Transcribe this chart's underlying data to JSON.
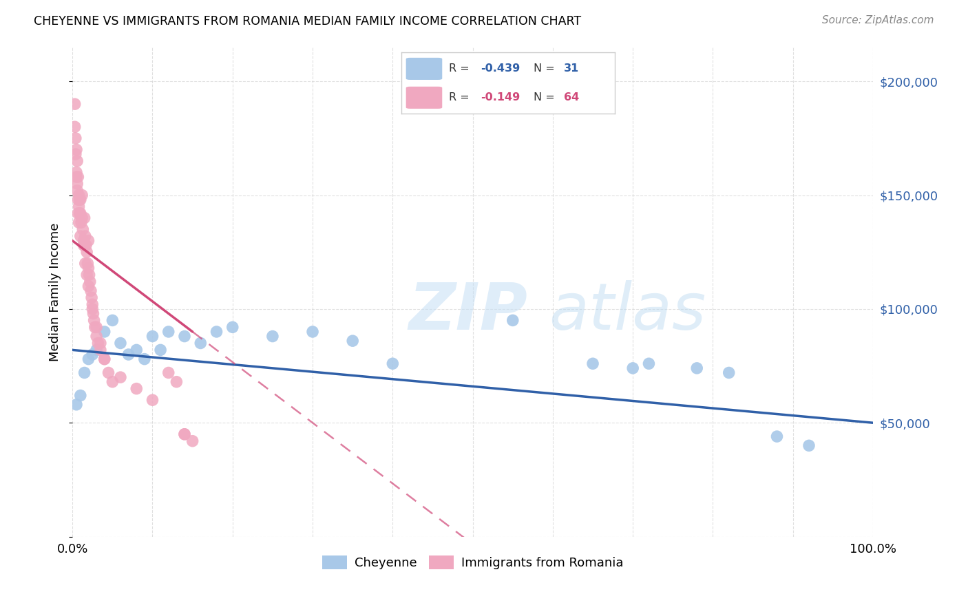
{
  "title": "CHEYENNE VS IMMIGRANTS FROM ROMANIA MEDIAN FAMILY INCOME CORRELATION CHART",
  "source": "Source: ZipAtlas.com",
  "ylabel": "Median Family Income",
  "legend_label_blue": "Cheyenne",
  "legend_label_pink": "Immigrants from Romania",
  "blue_color": "#a8c8e8",
  "pink_color": "#f0a8c0",
  "blue_line_color": "#3060a8",
  "pink_line_color": "#d04878",
  "watermark_zip": "ZIP",
  "watermark_atlas": "atlas",
  "blue_scatter_x": [
    0.5,
    1.0,
    1.5,
    2.0,
    2.5,
    3.0,
    4.0,
    5.0,
    6.0,
    7.0,
    8.0,
    9.0,
    10.0,
    11.0,
    12.0,
    14.0,
    16.0,
    18.0,
    20.0,
    25.0,
    30.0,
    35.0,
    40.0,
    55.0,
    65.0,
    70.0,
    72.0,
    78.0,
    82.0,
    88.0,
    92.0
  ],
  "blue_scatter_y": [
    58000,
    62000,
    72000,
    78000,
    80000,
    82000,
    90000,
    95000,
    85000,
    80000,
    82000,
    78000,
    88000,
    82000,
    90000,
    88000,
    85000,
    90000,
    92000,
    88000,
    90000,
    86000,
    76000,
    95000,
    76000,
    74000,
    76000,
    74000,
    72000,
    44000,
    40000
  ],
  "pink_scatter_x": [
    0.3,
    0.3,
    0.4,
    0.5,
    0.5,
    0.6,
    0.6,
    0.7,
    0.7,
    0.8,
    0.8,
    0.9,
    0.9,
    1.0,
    1.0,
    1.1,
    1.2,
    1.3,
    1.4,
    1.5,
    1.5,
    1.6,
    1.7,
    1.8,
    1.9,
    2.0,
    2.0,
    2.1,
    2.2,
    2.3,
    2.4,
    2.5,
    2.6,
    2.7,
    2.8,
    3.0,
    3.2,
    3.5,
    4.0,
    4.5,
    5.0,
    0.4,
    0.5,
    0.6,
    0.7,
    0.8,
    1.0,
    1.2,
    1.4,
    1.6,
    1.8,
    2.0,
    2.5,
    3.0,
    3.5,
    4.0,
    6.0,
    8.0,
    10.0,
    14.0,
    12.0,
    13.0,
    14.0,
    15.0
  ],
  "pink_scatter_y": [
    180000,
    190000,
    175000,
    170000,
    160000,
    165000,
    155000,
    158000,
    148000,
    150000,
    145000,
    148000,
    142000,
    142000,
    148000,
    138000,
    150000,
    135000,
    130000,
    128000,
    140000,
    132000,
    128000,
    125000,
    120000,
    118000,
    130000,
    115000,
    112000,
    108000,
    105000,
    102000,
    98000,
    95000,
    92000,
    88000,
    85000,
    82000,
    78000,
    72000,
    68000,
    168000,
    158000,
    152000,
    142000,
    138000,
    132000,
    140000,
    128000,
    120000,
    115000,
    110000,
    100000,
    92000,
    85000,
    78000,
    70000,
    65000,
    60000,
    45000,
    72000,
    68000,
    45000,
    42000
  ]
}
